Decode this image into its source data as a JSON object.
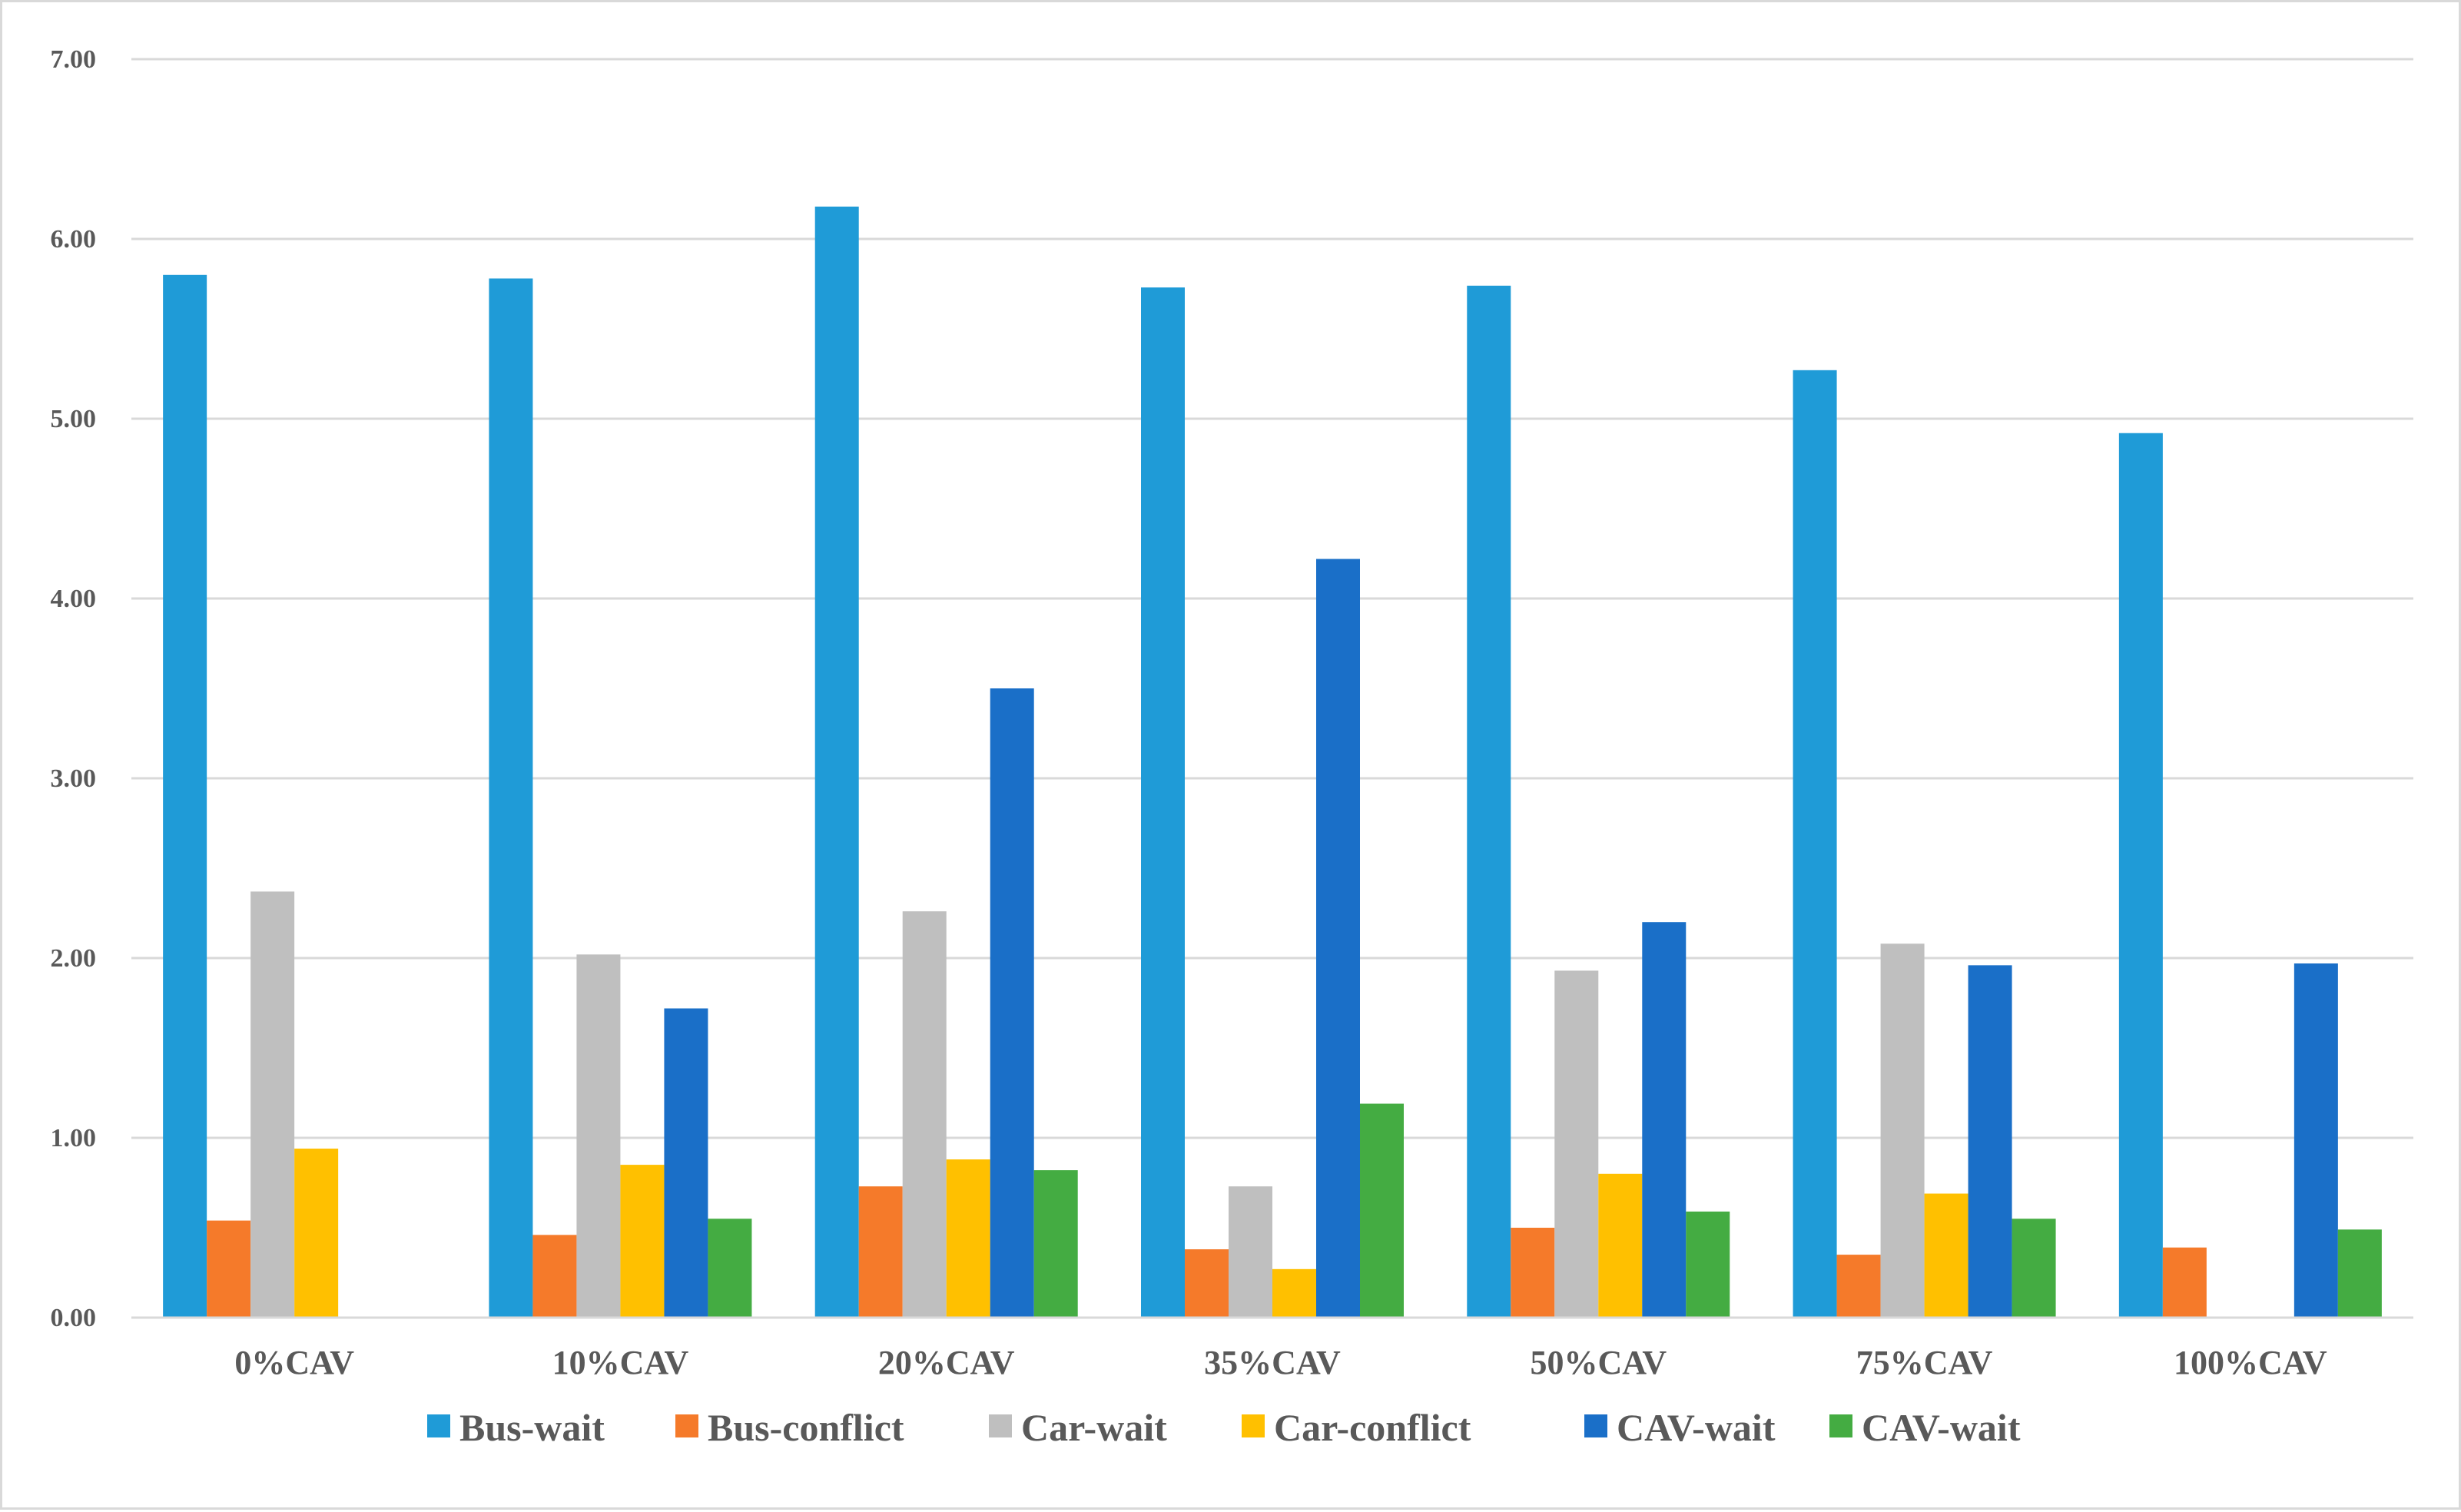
{
  "chart_data": {
    "type": "bar",
    "title": "",
    "xlabel": "",
    "ylabel": "",
    "ylim": [
      0,
      7
    ],
    "yticks": [
      "0.00",
      "1.00",
      "2.00",
      "3.00",
      "4.00",
      "5.00",
      "6.00",
      "7.00"
    ],
    "grid": true,
    "legend_position": "bottom",
    "categories": [
      "0%CAV",
      "10%CAV",
      "20%CAV",
      "35%CAV",
      "50%CAV",
      "75%CAV",
      "100%CAV"
    ],
    "series": [
      {
        "name": "Bus-wait",
        "color": "#1F9BD7",
        "values": [
          5.8,
          5.78,
          6.18,
          5.73,
          5.74,
          5.27,
          4.92
        ]
      },
      {
        "name": "Bus-conflict",
        "color": "#F57A2A",
        "values": [
          0.54,
          0.46,
          0.73,
          0.38,
          0.5,
          0.35,
          0.39
        ]
      },
      {
        "name": "Car-wait",
        "color": "#BFBFBF",
        "values": [
          2.37,
          2.02,
          2.26,
          0.73,
          1.93,
          2.08,
          null
        ]
      },
      {
        "name": "Car-conflict",
        "color": "#FFC000",
        "values": [
          0.94,
          0.85,
          0.88,
          0.27,
          0.8,
          0.69,
          null
        ]
      },
      {
        "name": "CAV-wait",
        "color": "#1A6FC8",
        "values": [
          null,
          1.72,
          3.5,
          4.22,
          2.2,
          1.96,
          1.97
        ]
      },
      {
        "name": "CAV-wait",
        "color": "#44AC42",
        "values": [
          null,
          0.55,
          0.82,
          1.19,
          0.59,
          0.55,
          0.49
        ]
      }
    ]
  }
}
